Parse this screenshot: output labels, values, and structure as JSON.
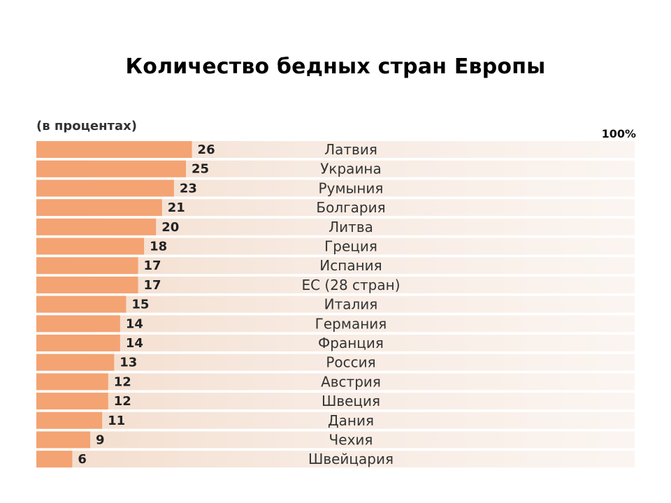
{
  "title": "Количество бедных стран Европы",
  "chart_data": {
    "type": "bar",
    "orientation": "horizontal",
    "subtitle": "(в процентах)",
    "max_label": "100%",
    "xlim": [
      0,
      100
    ],
    "categories": [
      "Латвия",
      "Украина",
      "Румыния",
      "Болгария",
      "Литва",
      "Греция",
      "Испания",
      "ЕС (28 стран)",
      "Италия",
      "Германия",
      "Франция",
      "Россия",
      "Австрия",
      "Швеция",
      "Дания",
      "Чехия",
      "Швейцария"
    ],
    "values": [
      26,
      25,
      23,
      21,
      20,
      18,
      17,
      17,
      15,
      14,
      14,
      13,
      12,
      12,
      11,
      9,
      6
    ],
    "colors": {
      "bar": "#F4A373",
      "row_start": "#F3DCCB",
      "row_mid": "#F7EAE1",
      "row_end": "#FBF5F1"
    }
  }
}
